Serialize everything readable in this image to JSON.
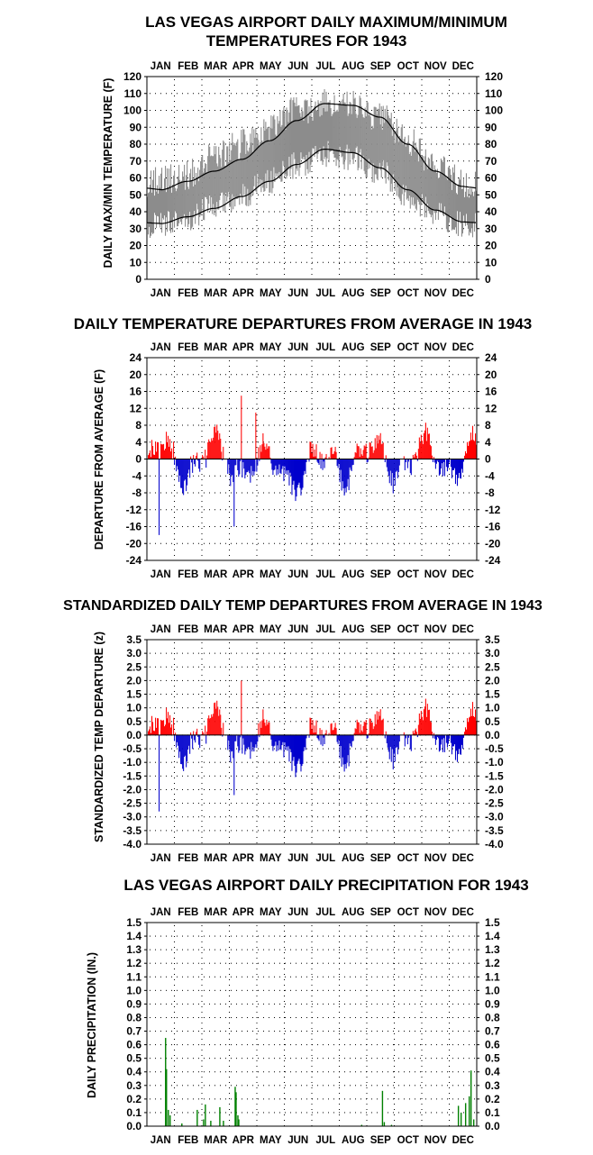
{
  "year": "1943",
  "colors": {
    "range_band": "#8c8c8c",
    "normal_line": "#000000",
    "positive": "#ff0000",
    "negative": "#0000cc",
    "precip": "#008000",
    "grid": "#000000"
  },
  "months": [
    "JAN",
    "FEB",
    "MAR",
    "APR",
    "MAY",
    "JUN",
    "JUL",
    "AUG",
    "SEP",
    "OCT",
    "NOV",
    "DEC"
  ],
  "chart_data": [
    {
      "type": "area",
      "title_line1": "LAS VEGAS AIRPORT DAILY MAXIMUM/MINIMUM",
      "title_line2": "TEMPERATURES FOR 1943",
      "ylabel": "DAILY MAX/MIN TEMPERATURE (F)",
      "ylim": [
        0,
        120
      ],
      "yticks": [
        "120",
        "110",
        "100",
        "90",
        "80",
        "70",
        "60",
        "50",
        "40",
        "30",
        "20",
        "10",
        "0"
      ],
      "series": [
        {
          "month_max_avg": [
            58,
            62,
            72,
            80,
            90,
            100,
            104,
            103,
            96,
            82,
            66,
            57
          ]
        },
        {
          "month_min_avg": [
            32,
            36,
            43,
            50,
            58,
            68,
            74,
            72,
            63,
            50,
            38,
            32
          ]
        },
        {
          "normal_high": [
            53,
            58,
            64,
            71,
            82,
            94,
            104,
            103,
            96,
            80,
            64,
            55
          ]
        },
        {
          "normal_low": [
            33,
            37,
            42,
            49,
            58,
            68,
            77,
            75,
            66,
            53,
            41,
            34
          ]
        }
      ],
      "grid": true
    },
    {
      "type": "bar",
      "title": "DAILY TEMPERATURE DEPARTURES FROM AVERAGE IN 1943",
      "ylabel": "DEPARTURE FROM AVERAGE (F)",
      "ylim": [
        -24,
        24
      ],
      "yticks": [
        "24",
        "20",
        "16",
        "12",
        "8",
        "4",
        "0",
        "-4",
        "-8",
        "-12",
        "-16",
        "-20",
        "-24"
      ],
      "extremes": [
        {
          "day": 13,
          "value": -18
        },
        {
          "day": 104,
          "value": 15
        },
        {
          "day": 96,
          "value": -16
        },
        {
          "day": 120,
          "value": 11
        }
      ],
      "grid": true
    },
    {
      "type": "bar",
      "title": "STANDARDIZED DAILY TEMP DEPARTURES FROM AVERAGE IN 1943",
      "ylabel": "STANDARDIZED TEMP DEPARTURE (z)",
      "ylim": [
        -4.0,
        3.5
      ],
      "yticks": [
        "3.5",
        "3.0",
        "2.5",
        "2.0",
        "1.5",
        "1.0",
        "0.5",
        "0.0",
        "-0.5",
        "-1.0",
        "-1.5",
        "-2.0",
        "-2.5",
        "-3.0",
        "-3.5",
        "-4.0"
      ],
      "extremes": [
        {
          "day": 13,
          "value": -2.8
        },
        {
          "day": 104,
          "value": 2.0
        },
        {
          "day": 96,
          "value": -2.2
        }
      ],
      "grid": true
    },
    {
      "type": "bar",
      "title": "LAS VEGAS AIRPORT DAILY PRECIPITATION FOR 1943",
      "ylabel": "DAILY PRECIPITATION (IN.)",
      "ylim": [
        0,
        1.5
      ],
      "yticks": [
        "1.5",
        "1.4",
        "1.3",
        "1.2",
        "1.1",
        "1.0",
        "0.9",
        "0.8",
        "0.7",
        "0.6",
        "0.5",
        "0.4",
        "0.3",
        "0.2",
        "0.1",
        "0.0"
      ],
      "values": [
        {
          "day": 20,
          "value": 0.65
        },
        {
          "day": 21,
          "value": 0.42
        },
        {
          "day": 23,
          "value": 0.12
        },
        {
          "day": 25,
          "value": 0.08
        },
        {
          "day": 38,
          "value": 0.02
        },
        {
          "day": 55,
          "value": 0.12
        },
        {
          "day": 62,
          "value": 0.05
        },
        {
          "day": 64,
          "value": 0.16
        },
        {
          "day": 70,
          "value": 0.04
        },
        {
          "day": 80,
          "value": 0.14
        },
        {
          "day": 84,
          "value": 0.04
        },
        {
          "day": 97,
          "value": 0.29
        },
        {
          "day": 98,
          "value": 0.25
        },
        {
          "day": 100,
          "value": 0.08
        },
        {
          "day": 101,
          "value": 0.05
        },
        {
          "day": 237,
          "value": 0.01
        },
        {
          "day": 260,
          "value": 0.26
        },
        {
          "day": 262,
          "value": 0.03
        },
        {
          "day": 270,
          "value": 0.01
        },
        {
          "day": 344,
          "value": 0.15
        },
        {
          "day": 347,
          "value": 0.1
        },
        {
          "day": 352,
          "value": 0.17
        },
        {
          "day": 356,
          "value": 0.22
        },
        {
          "day": 358,
          "value": 0.41
        },
        {
          "day": 361,
          "value": 0.05
        }
      ],
      "grid": true
    }
  ]
}
